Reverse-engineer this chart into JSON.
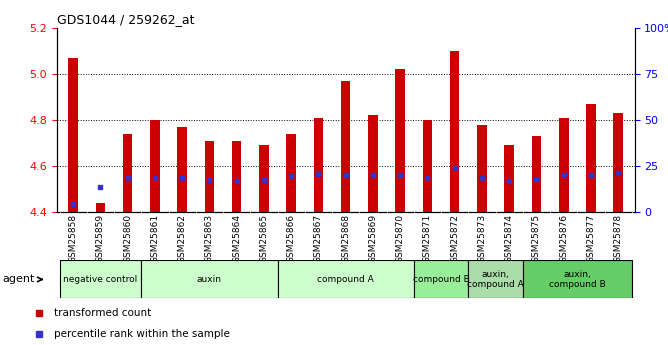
{
  "title": "GDS1044 / 259262_at",
  "samples": [
    "GSM25858",
    "GSM25859",
    "GSM25860",
    "GSM25861",
    "GSM25862",
    "GSM25863",
    "GSM25864",
    "GSM25865",
    "GSM25866",
    "GSM25867",
    "GSM25868",
    "GSM25869",
    "GSM25870",
    "GSM25871",
    "GSM25872",
    "GSM25873",
    "GSM25874",
    "GSM25875",
    "GSM25876",
    "GSM25877",
    "GSM25878"
  ],
  "bar_heights": [
    5.07,
    4.44,
    4.74,
    4.8,
    4.77,
    4.71,
    4.71,
    4.69,
    4.74,
    4.81,
    4.97,
    4.82,
    5.02,
    4.8,
    5.1,
    4.78,
    4.69,
    4.73,
    4.81,
    4.87,
    4.83
  ],
  "blue_positions": [
    4.435,
    4.51,
    4.55,
    4.55,
    4.55,
    4.54,
    4.535,
    4.54,
    4.555,
    4.565,
    4.56,
    4.56,
    4.56,
    4.55,
    4.59,
    4.55,
    4.535,
    4.545,
    4.56,
    4.56,
    4.57
  ],
  "bar_color": "#cc0000",
  "blue_color": "#3333cc",
  "ylim_left": [
    4.4,
    5.2
  ],
  "yticks_left": [
    4.4,
    4.6,
    4.8,
    5.0,
    5.2
  ],
  "yticks_right": [
    0,
    25,
    50,
    75,
    100
  ],
  "ytick_labels_right": [
    "0",
    "25",
    "50",
    "75",
    "100%"
  ],
  "grid_lines": [
    4.6,
    4.8,
    5.0
  ],
  "agent_groups": [
    {
      "label": "negative control",
      "start": 0,
      "end": 3,
      "color": "#ccffcc"
    },
    {
      "label": "auxin",
      "start": 3,
      "end": 8,
      "color": "#ccffcc"
    },
    {
      "label": "compound A",
      "start": 8,
      "end": 13,
      "color": "#ccffcc"
    },
    {
      "label": "compound B",
      "start": 13,
      "end": 15,
      "color": "#99ee99"
    },
    {
      "label": "auxin,\ncompound A",
      "start": 15,
      "end": 17,
      "color": "#aaddaa"
    },
    {
      "label": "auxin,\ncompound B",
      "start": 17,
      "end": 21,
      "color": "#66cc66"
    }
  ],
  "bar_width": 0.35
}
